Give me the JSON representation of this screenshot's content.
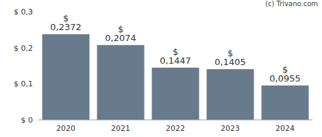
{
  "chart_data": {
    "type": "bar",
    "annotations": [
      "(c) Trivano.com"
    ],
    "categories": [
      "2020",
      "2021",
      "2022",
      "2023",
      "2024"
    ],
    "values": [
      0.2372,
      0.2074,
      0.1447,
      0.1405,
      0.0955
    ],
    "value_labels": [
      "$ 0,2372",
      "$ 0,2074",
      "$ 0,1447",
      "$ 0,1405",
      "$ 0,0955"
    ],
    "data_labels": true,
    "color": "#677b8c",
    "ylim": [
      0,
      0.3
    ],
    "yticks": [
      {
        "value": 0,
        "label": "$ 0"
      },
      {
        "value": 0.1,
        "label": "$ 0,1"
      },
      {
        "value": 0.2,
        "label": "$ 0,2"
      },
      {
        "value": 0.3,
        "label": "$ 0,3"
      }
    ],
    "grid": false
  }
}
